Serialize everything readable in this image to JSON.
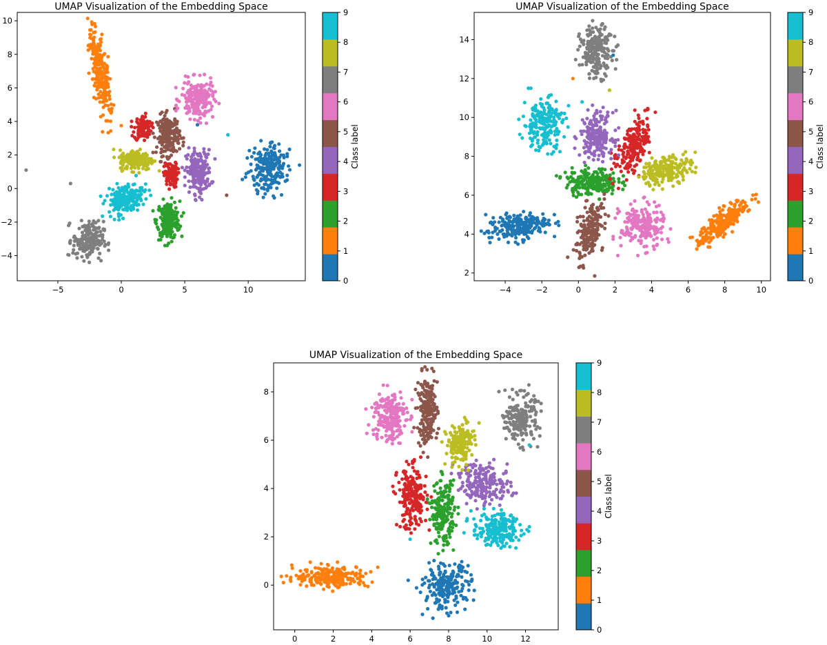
{
  "chart_data": [
    {
      "type": "scatter",
      "title": "UMAP Visualization of the Embedding Space",
      "xlabel": "",
      "ylabel": "",
      "xlim": [
        -8.2,
        14.5
      ],
      "ylim": [
        -5.5,
        10.5
      ],
      "xticks": [
        -5,
        0,
        5,
        10
      ],
      "yticks": [
        -4,
        -2,
        0,
        2,
        4,
        6,
        8,
        10
      ],
      "colorbar": {
        "label": "Class label",
        "ticks": [
          0,
          1,
          2,
          3,
          4,
          5,
          6,
          7,
          8,
          9
        ]
      },
      "clusters": [
        {
          "label": 0,
          "center": [
            11.6,
            1.2
          ],
          "spread": [
            1.0,
            0.95
          ],
          "rotation": 40,
          "n": 230
        },
        {
          "label": 1,
          "center": [
            -1.6,
            6.8
          ],
          "spread": [
            0.45,
            1.75
          ],
          "rotation": 15,
          "n": 230
        },
        {
          "label": 2,
          "center": [
            3.7,
            -1.9
          ],
          "spread": [
            0.6,
            0.75
          ],
          "rotation": 0,
          "n": 200
        },
        {
          "label": 3,
          "center": [
            1.7,
            3.6
          ],
          "spread": [
            0.45,
            0.5
          ],
          "rotation": 0,
          "n": 100
        },
        {
          "label": 3,
          "center": [
            3.9,
            0.8
          ],
          "spread": [
            0.35,
            0.5
          ],
          "rotation": 0,
          "n": 90
        },
        {
          "label": 4,
          "center": [
            6.1,
            1.0
          ],
          "spread": [
            0.65,
            0.85
          ],
          "rotation": 0,
          "n": 200
        },
        {
          "label": 5,
          "center": [
            3.7,
            3.2
          ],
          "spread": [
            0.6,
            0.8
          ],
          "rotation": 0,
          "n": 190
        },
        {
          "label": 6,
          "center": [
            6.0,
            5.3
          ],
          "spread": [
            0.85,
            0.75
          ],
          "rotation": 0,
          "n": 200
        },
        {
          "label": 7,
          "center": [
            -2.6,
            -3.1
          ],
          "spread": [
            0.8,
            0.75
          ],
          "rotation": 0,
          "n": 200
        },
        {
          "label": 8,
          "center": [
            1.2,
            1.7
          ],
          "spread": [
            0.9,
            0.4
          ],
          "rotation": 0,
          "n": 200
        },
        {
          "label": 9,
          "center": [
            0.3,
            -0.6
          ],
          "spread": [
            1.0,
            0.55
          ],
          "rotation": 15,
          "n": 200
        }
      ],
      "outliers": [
        {
          "label": 7,
          "x": -7.5,
          "y": 1.1
        },
        {
          "label": 7,
          "x": -4.0,
          "y": 0.3
        },
        {
          "label": 5,
          "x": 8.3,
          "y": -0.4
        },
        {
          "label": 9,
          "x": 8.4,
          "y": 3.2
        },
        {
          "label": 0,
          "x": 6.0,
          "y": 3.8
        }
      ]
    },
    {
      "type": "scatter",
      "title": "UMAP Visualization of the Embedding Space",
      "xlabel": "",
      "ylabel": "",
      "xlim": [
        -5.7,
        10.5
      ],
      "ylim": [
        1.6,
        15.4
      ],
      "xticks": [
        -4,
        -2,
        0,
        2,
        4,
        6,
        8,
        10
      ],
      "yticks": [
        2,
        4,
        6,
        8,
        10,
        12,
        14
      ],
      "colorbar": {
        "label": "Class label",
        "ticks": [
          0,
          1,
          2,
          3,
          4,
          5,
          6,
          7,
          8,
          9
        ]
      },
      "clusters": [
        {
          "label": 0,
          "center": [
            -3.3,
            4.4
          ],
          "spread": [
            1.1,
            0.45
          ],
          "rotation": 10,
          "n": 220
        },
        {
          "label": 1,
          "center": [
            7.9,
            4.6
          ],
          "spread": [
            1.2,
            0.35
          ],
          "rotation": 40,
          "n": 230
        },
        {
          "label": 2,
          "center": [
            0.7,
            6.7
          ],
          "spread": [
            0.95,
            0.45
          ],
          "rotation": 0,
          "n": 220
        },
        {
          "label": 3,
          "center": [
            3.0,
            8.4
          ],
          "spread": [
            0.5,
            1.1
          ],
          "rotation": -25,
          "n": 200
        },
        {
          "label": 4,
          "center": [
            1.0,
            9.1
          ],
          "spread": [
            0.6,
            0.8
          ],
          "rotation": 0,
          "n": 190
        },
        {
          "label": 5,
          "center": [
            0.6,
            4.1
          ],
          "spread": [
            0.45,
            1.05
          ],
          "rotation": -15,
          "n": 200
        },
        {
          "label": 6,
          "center": [
            3.5,
            4.4
          ],
          "spread": [
            0.8,
            0.75
          ],
          "rotation": 0,
          "n": 210
        },
        {
          "label": 7,
          "center": [
            1.0,
            13.4
          ],
          "spread": [
            0.6,
            0.85
          ],
          "rotation": 0,
          "n": 200
        },
        {
          "label": 8,
          "center": [
            4.8,
            7.3
          ],
          "spread": [
            0.95,
            0.45
          ],
          "rotation": 15,
          "n": 210
        },
        {
          "label": 9,
          "center": [
            -1.9,
            9.7
          ],
          "spread": [
            0.75,
            0.9
          ],
          "rotation": 0,
          "n": 210
        }
      ],
      "outliers": [
        {
          "label": 0,
          "x": 1.9,
          "y": 13.2
        },
        {
          "label": 8,
          "x": 1.7,
          "y": 11.4
        },
        {
          "label": 1,
          "x": -0.3,
          "y": 12.0
        },
        {
          "label": 9,
          "x": 0.2,
          "y": 10.8
        }
      ]
    },
    {
      "type": "scatter",
      "title": "UMAP Visualization of the Embedding Space",
      "xlabel": "",
      "ylabel": "",
      "xlim": [
        -1.1,
        13.7
      ],
      "ylim": [
        -1.85,
        9.2
      ],
      "xticks": [
        0,
        2,
        4,
        6,
        8,
        10,
        12
      ],
      "yticks": [
        0,
        2,
        4,
        6,
        8
      ],
      "colorbar": {
        "label": "Class label",
        "ticks": [
          0,
          1,
          2,
          3,
          4,
          5,
          6,
          7,
          8,
          9
        ]
      },
      "clusters": [
        {
          "label": 0,
          "center": [
            7.9,
            -0.05
          ],
          "spread": [
            0.85,
            0.6
          ],
          "rotation": 15,
          "n": 220
        },
        {
          "label": 1,
          "center": [
            1.9,
            0.35
          ],
          "spread": [
            1.3,
            0.3
          ],
          "rotation": 0,
          "n": 220
        },
        {
          "label": 2,
          "center": [
            7.7,
            3.0
          ],
          "spread": [
            0.4,
            0.85
          ],
          "rotation": 0,
          "n": 200
        },
        {
          "label": 3,
          "center": [
            6.1,
            3.6
          ],
          "spread": [
            0.5,
            0.85
          ],
          "rotation": 0,
          "n": 220
        },
        {
          "label": 4,
          "center": [
            9.9,
            4.2
          ],
          "spread": [
            0.9,
            0.55
          ],
          "rotation": -10,
          "n": 200
        },
        {
          "label": 5,
          "center": [
            6.9,
            7.2
          ],
          "spread": [
            0.35,
            0.95
          ],
          "rotation": 0,
          "n": 200
        },
        {
          "label": 6,
          "center": [
            4.9,
            7.0
          ],
          "spread": [
            0.6,
            0.75
          ],
          "rotation": 0,
          "n": 200
        },
        {
          "label": 7,
          "center": [
            11.8,
            6.9
          ],
          "spread": [
            0.55,
            0.65
          ],
          "rotation": 10,
          "n": 200
        },
        {
          "label": 8,
          "center": [
            8.6,
            5.9
          ],
          "spread": [
            0.45,
            0.55
          ],
          "rotation": -20,
          "n": 180
        },
        {
          "label": 9,
          "center": [
            10.5,
            2.3
          ],
          "spread": [
            0.85,
            0.45
          ],
          "rotation": 0,
          "n": 210
        }
      ],
      "outliers": [
        {
          "label": 9,
          "x": 12.2,
          "y": 5.8
        },
        {
          "label": 9,
          "x": 6.0,
          "y": 1.9
        },
        {
          "label": 0,
          "x": 5.9,
          "y": 0.2
        }
      ]
    }
  ],
  "colormap": [
    "#1f77b4",
    "#ff7f0e",
    "#2ca02c",
    "#d62728",
    "#9467bd",
    "#8c564b",
    "#e377c2",
    "#7f7f7f",
    "#bcbd22",
    "#17becf"
  ]
}
